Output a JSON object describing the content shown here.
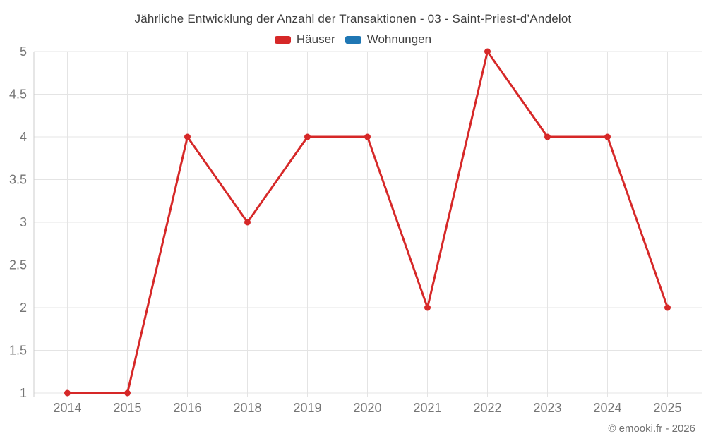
{
  "header": {
    "title": "Jährliche Entwicklung der Anzahl der Transaktionen - 03 - Saint-Priest-d’Andelot"
  },
  "legend": {
    "items": [
      {
        "label": "Häuser",
        "color": "#d62828"
      },
      {
        "label": "Wohnungen",
        "color": "#1f77b4"
      }
    ]
  },
  "footer": {
    "copyright": "© emooki.fr - 2026"
  },
  "chart_data": {
    "type": "line",
    "title": "Jährliche Entwicklung der Anzahl der Transaktionen - 03 - Saint-Priest-d’Andelot",
    "categories": [
      "2014",
      "2015",
      "2016",
      "2018",
      "2019",
      "2020",
      "2021",
      "2022",
      "2023",
      "2024",
      "2025"
    ],
    "series": [
      {
        "name": "Häuser",
        "color": "#d62828",
        "values": [
          1,
          1,
          4,
          3,
          4,
          4,
          2,
          5,
          4,
          4,
          2
        ]
      },
      {
        "name": "Wohnungen",
        "color": "#1f77b4",
        "values": []
      }
    ],
    "xlabel": "",
    "ylabel": "",
    "ylim": [
      1,
      5
    ],
    "ytick_step": 0.5,
    "yticks": [
      "1",
      "1.5",
      "2",
      "2.5",
      "3",
      "3.5",
      "4",
      "4.5",
      "5"
    ],
    "grid": true,
    "legend_position": "top",
    "marker": "circle"
  }
}
